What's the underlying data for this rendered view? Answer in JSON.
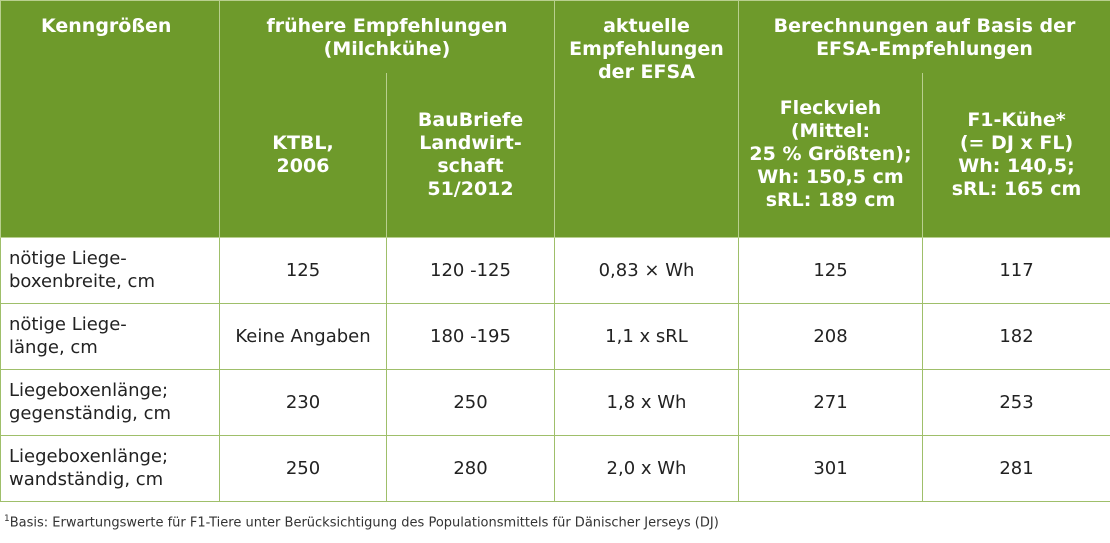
{
  "header": {
    "kenngroessen": "Kenngrößen",
    "fruehere_group": "frühere Empfehlungen\n(Milchkühe)",
    "ktbl": "KTBL,\n2006",
    "baubriefe": "BauBriefe\nLandwirt-\nschaft\n51/2012",
    "efsa": "aktuelle\nEmpfehlungen\nder EFSA",
    "berechnungen_group": "Berechnungen auf Basis der\nEFSA-Empfehlungen",
    "fleckvieh": "Fleckvieh\n(Mittel:\n25 % Größten);\nWh: 150,5 cm\nsRL: 189 cm",
    "f1": "F1-Kühe*\n(= DJ x FL)\nWh: 140,5;\nsRL: 165 cm"
  },
  "rows": [
    {
      "label": "nötige Liege-\nboxenbreite, cm",
      "ktbl": "125",
      "baubriefe": "120 -125",
      "efsa": "0,83 × Wh",
      "fleckvieh": "125",
      "f1": "117"
    },
    {
      "label": "nötige Liege-\nlänge, cm",
      "ktbl": "Keine Angaben",
      "baubriefe": "180 -195",
      "efsa": "1,1 x sRL",
      "fleckvieh": "208",
      "f1": "182"
    },
    {
      "label": "Liegeboxenlänge;\ngegenständig, cm",
      "ktbl": "230",
      "baubriefe": "250",
      "efsa": "1,8 x Wh",
      "fleckvieh": "271",
      "f1": "253"
    },
    {
      "label": "Liegeboxenlänge;\nwandständig, cm",
      "ktbl": "250",
      "baubriefe": "280",
      "efsa": "2,0 x Wh",
      "fleckvieh": "301",
      "f1": "281"
    }
  ],
  "footnote": {
    "marker": "1",
    "text": "Basis: Erwartungswerte für F1-Tiere unter Berücksichtigung des Populationsmittels für Dänischer Jerseys (DJ)"
  },
  "colors": {
    "header_bg": "#6e9a2b",
    "header_text": "#ffffff",
    "grid": "#9fbf6a"
  }
}
